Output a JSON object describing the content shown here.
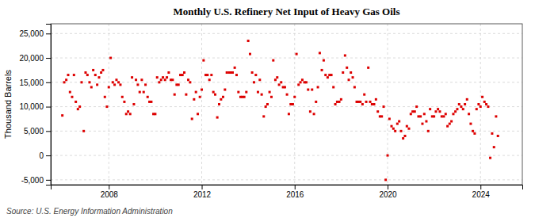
{
  "chart_data": {
    "type": "scatter",
    "title": "Monthly U.S. Refinery Net Input of Heavy Gas Oils",
    "y_label": "Thousand Barrels",
    "annotations": [
      "Source: U.S. Energy Information Administration"
    ],
    "color": "#dd0000",
    "marker": "square",
    "grid": true,
    "xlim": [
      2005.5,
      2025.8
    ],
    "xticks": [
      2008,
      2012,
      2016,
      2020,
      2024
    ],
    "ylim": [
      -6000,
      27000
    ],
    "yticks": [
      {
        "value": -5000,
        "label": "-5,000"
      },
      0,
      {
        "value": 5000,
        "label": "5,000"
      },
      {
        "value": 10000,
        "label": "10,000"
      },
      {
        "value": 15000,
        "label": "15,000"
      },
      {
        "value": 20000,
        "label": "20,000"
      },
      {
        "value": 25000,
        "label": "25,000"
      }
    ],
    "x": [
      2006.0,
      2006.08,
      2006.17,
      2006.25,
      2006.33,
      2006.42,
      2006.5,
      2006.58,
      2006.67,
      2006.75,
      2006.83,
      2006.92,
      2007.0,
      2007.08,
      2007.17,
      2007.25,
      2007.33,
      2007.42,
      2007.5,
      2007.58,
      2007.67,
      2007.75,
      2007.83,
      2007.92,
      2008.0,
      2008.08,
      2008.17,
      2008.25,
      2008.33,
      2008.42,
      2008.5,
      2008.58,
      2008.67,
      2008.75,
      2008.83,
      2008.92,
      2009.0,
      2009.08,
      2009.17,
      2009.25,
      2009.33,
      2009.42,
      2009.5,
      2009.58,
      2009.67,
      2009.75,
      2009.83,
      2009.92,
      2010.0,
      2010.08,
      2010.17,
      2010.25,
      2010.33,
      2010.42,
      2010.5,
      2010.58,
      2010.67,
      2010.75,
      2010.83,
      2010.92,
      2011.0,
      2011.08,
      2011.17,
      2011.25,
      2011.33,
      2011.42,
      2011.5,
      2011.58,
      2011.67,
      2011.75,
      2011.83,
      2011.92,
      2012.0,
      2012.08,
      2012.17,
      2012.25,
      2012.33,
      2012.42,
      2012.5,
      2012.58,
      2012.67,
      2012.75,
      2012.83,
      2012.92,
      2013.0,
      2013.08,
      2013.17,
      2013.25,
      2013.33,
      2013.42,
      2013.5,
      2013.58,
      2013.67,
      2013.75,
      2013.83,
      2013.92,
      2014.0,
      2014.08,
      2014.17,
      2014.25,
      2014.33,
      2014.42,
      2014.5,
      2014.58,
      2014.67,
      2014.75,
      2014.83,
      2014.92,
      2015.0,
      2015.08,
      2015.17,
      2015.25,
      2015.33,
      2015.42,
      2015.5,
      2015.58,
      2015.67,
      2015.75,
      2015.83,
      2015.92,
      2016.0,
      2016.08,
      2016.17,
      2016.25,
      2016.33,
      2016.42,
      2016.5,
      2016.58,
      2016.67,
      2016.75,
      2016.83,
      2016.92,
      2017.0,
      2017.08,
      2017.17,
      2017.25,
      2017.33,
      2017.42,
      2017.5,
      2017.58,
      2017.67,
      2017.75,
      2017.83,
      2017.92,
      2018.0,
      2018.08,
      2018.17,
      2018.25,
      2018.33,
      2018.42,
      2018.5,
      2018.58,
      2018.67,
      2018.75,
      2018.83,
      2018.92,
      2019.0,
      2019.08,
      2019.17,
      2019.25,
      2019.33,
      2019.42,
      2019.5,
      2019.58,
      2019.67,
      2019.75,
      2019.83,
      2019.92,
      2020.0,
      2020.08,
      2020.17,
      2020.25,
      2020.33,
      2020.42,
      2020.5,
      2020.58,
      2020.67,
      2020.75,
      2020.83,
      2020.92,
      2021.0,
      2021.08,
      2021.17,
      2021.25,
      2021.33,
      2021.42,
      2021.5,
      2021.58,
      2021.67,
      2021.75,
      2021.83,
      2021.92,
      2022.0,
      2022.08,
      2022.17,
      2022.25,
      2022.33,
      2022.42,
      2022.5,
      2022.58,
      2022.67,
      2022.75,
      2022.83,
      2022.92,
      2023.0,
      2023.08,
      2023.17,
      2023.25,
      2023.33,
      2023.42,
      2023.5,
      2023.58,
      2023.67,
      2023.75,
      2023.83,
      2023.92,
      2024.0,
      2024.08,
      2024.17,
      2024.25,
      2024.33,
      2024.42,
      2024.5,
      2024.58,
      2024.67,
      2024.75
    ],
    "values": [
      8200,
      15000,
      15500,
      16500,
      13000,
      12000,
      16500,
      11000,
      9500,
      10000,
      15000,
      5000,
      17000,
      16500,
      15000,
      14000,
      17500,
      16500,
      14500,
      16000,
      17000,
      17500,
      12000,
      10000,
      14000,
      20000,
      15000,
      14500,
      15500,
      15000,
      14500,
      12000,
      11000,
      8500,
      9000,
      8500,
      16000,
      10500,
      15500,
      14500,
      13000,
      15500,
      13000,
      14500,
      12000,
      11000,
      11000,
      8500,
      8500,
      16000,
      15000,
      15500,
      16000,
      15500,
      16000,
      17000,
      15500,
      15500,
      12500,
      14500,
      14500,
      16500,
      16500,
      17000,
      12500,
      15500,
      15000,
      7500,
      11500,
      13000,
      8500,
      12000,
      13500,
      19500,
      16500,
      16500,
      15500,
      16500,
      13000,
      12500,
      7800,
      10500,
      11500,
      12000,
      13500,
      17000,
      17000,
      17000,
      17000,
      18000,
      16500,
      13000,
      12000,
      12000,
      12000,
      13000,
      23500,
      20800,
      17000,
      15000,
      16500,
      13000,
      15500,
      12500,
      8000,
      10000,
      10500,
      13000,
      12000,
      19500,
      15500,
      16000,
      14500,
      15000,
      14000,
      14000,
      12500,
      8500,
      10500,
      10500,
      12000,
      20800,
      14500,
      15000,
      15500,
      15000,
      15000,
      13500,
      9000,
      13500,
      8500,
      11000,
      14000,
      21000,
      17500,
      19500,
      16500,
      16000,
      16500,
      16500,
      14000,
      10500,
      11000,
      11000,
      11500,
      17000,
      20500,
      18000,
      15500,
      17000,
      16000,
      14000,
      11000,
      11000,
      11000,
      10500,
      12500,
      11000,
      18000,
      11000,
      10500,
      10500,
      11500,
      9000,
      8000,
      8000,
      10000,
      -5000,
      0,
      7500,
      6000,
      5500,
      5000,
      6500,
      7000,
      5000,
      3500,
      4000,
      6000,
      5500,
      8500,
      9000,
      9000,
      10000,
      8000,
      8000,
      6500,
      8500,
      7000,
      5000,
      9500,
      8000,
      8000,
      9000,
      9500,
      9000,
      8000,
      8000,
      8500,
      6000,
      6500,
      7000,
      8500,
      9000,
      9500,
      10500,
      10000,
      9500,
      10500,
      11500,
      8500,
      6500,
      5000,
      4500,
      9500,
      10500,
      10000,
      12000,
      11000,
      10500,
      10000,
      -500,
      4500,
      1700,
      8000,
      4000
    ]
  }
}
